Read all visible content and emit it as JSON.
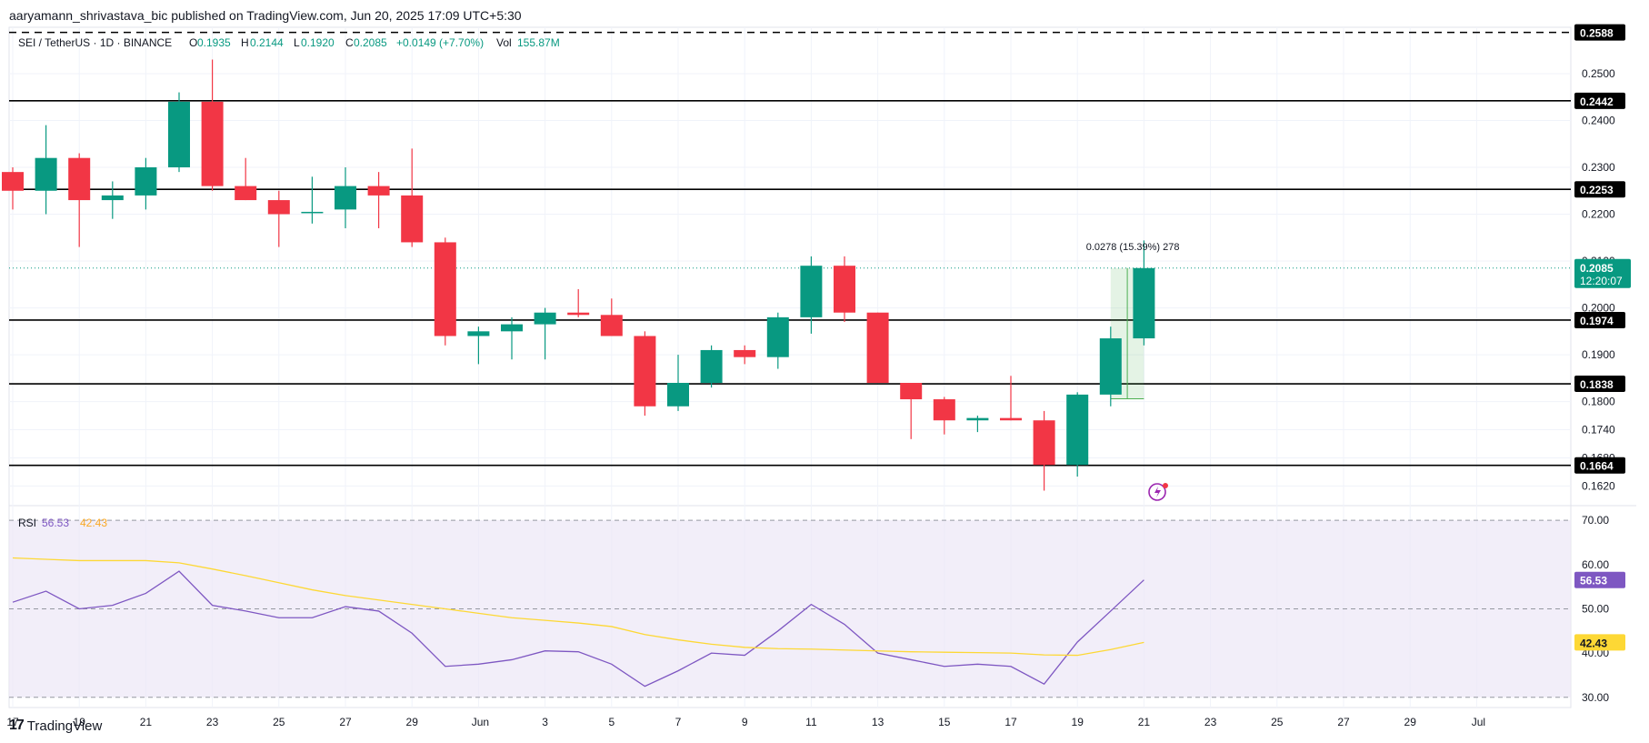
{
  "header": {
    "publisher_line": "aaryamann_shrivastava_bic published on TradingView.com, Jun 20, 2025 17:09 UTC+5:30"
  },
  "legend": {
    "symbol": "SEI / TetherUS · 1D · BINANCE",
    "o_label": "O",
    "o_value": "0.1935",
    "h_label": "H",
    "h_value": "0.2144",
    "l_label": "L",
    "l_value": "0.1920",
    "c_label": "C",
    "c_value": "0.2085",
    "change": "+0.0149 (+7.70%)",
    "vol_label": "Vol",
    "vol_value": "155.87M"
  },
  "rsi_legend": {
    "label": "RSI",
    "value1": "56.53",
    "value2": "42.43"
  },
  "footer": {
    "brand": "TradingView"
  },
  "colors": {
    "up": "#089981",
    "down": "#f23645",
    "rsi_line": "#7e57c2",
    "rsi_ma": "#fdd835",
    "rsi_band": "#ede7f6",
    "grid": "#f0f3fa",
    "text": "#131722"
  },
  "chart_data": [
    {
      "type": "candlestick",
      "title": "SEI / TetherUS",
      "price_axis_ticks": [
        "0.2500",
        "0.2400",
        "0.2300",
        "0.2200",
        "0.2100",
        "0.2000",
        "0.1900",
        "0.1800",
        "0.1740",
        "0.1680",
        "0.1620"
      ],
      "x_ticks": [
        "17",
        "19",
        "21",
        "23",
        "25",
        "27",
        "29",
        "Jun",
        "3",
        "5",
        "7",
        "9",
        "11",
        "13",
        "15",
        "17",
        "19",
        "21",
        "23",
        "25",
        "27",
        "29",
        "Jul"
      ],
      "ylim": [
        0.158,
        0.259
      ],
      "candles": [
        {
          "d": "May 17",
          "o": 0.229,
          "h": 0.23,
          "l": 0.221,
          "c": 0.225
        },
        {
          "d": "May 18",
          "o": 0.225,
          "h": 0.239,
          "l": 0.22,
          "c": 0.232
        },
        {
          "d": "May 19",
          "o": 0.232,
          "h": 0.233,
          "l": 0.213,
          "c": 0.223
        },
        {
          "d": "May 20",
          "o": 0.223,
          "h": 0.227,
          "l": 0.219,
          "c": 0.224
        },
        {
          "d": "May 21",
          "o": 0.224,
          "h": 0.232,
          "l": 0.221,
          "c": 0.23
        },
        {
          "d": "May 22",
          "o": 0.23,
          "h": 0.246,
          "l": 0.229,
          "c": 0.244
        },
        {
          "d": "May 23",
          "o": 0.244,
          "h": 0.253,
          "l": 0.225,
          "c": 0.226
        },
        {
          "d": "May 24",
          "o": 0.226,
          "h": 0.232,
          "l": 0.223,
          "c": 0.223
        },
        {
          "d": "May 25",
          "o": 0.223,
          "h": 0.225,
          "l": 0.213,
          "c": 0.22
        },
        {
          "d": "May 26",
          "o": 0.2205,
          "h": 0.228,
          "l": 0.218,
          "c": 0.2205
        },
        {
          "d": "May 27",
          "o": 0.221,
          "h": 0.23,
          "l": 0.217,
          "c": 0.226
        },
        {
          "d": "May 28",
          "o": 0.226,
          "h": 0.229,
          "l": 0.217,
          "c": 0.224
        },
        {
          "d": "May 29",
          "o": 0.224,
          "h": 0.234,
          "l": 0.213,
          "c": 0.214
        },
        {
          "d": "May 30",
          "o": 0.214,
          "h": 0.215,
          "l": 0.192,
          "c": 0.194
        },
        {
          "d": "May 31",
          "o": 0.194,
          "h": 0.196,
          "l": 0.188,
          "c": 0.195
        },
        {
          "d": "Jun 1",
          "o": 0.195,
          "h": 0.198,
          "l": 0.189,
          "c": 0.1965
        },
        {
          "d": "Jun 2",
          "o": 0.1965,
          "h": 0.2,
          "l": 0.189,
          "c": 0.199
        },
        {
          "d": "Jun 3",
          "o": 0.199,
          "h": 0.204,
          "l": 0.198,
          "c": 0.1985
        },
        {
          "d": "Jun 4",
          "o": 0.1985,
          "h": 0.202,
          "l": 0.194,
          "c": 0.194
        },
        {
          "d": "Jun 5",
          "o": 0.194,
          "h": 0.195,
          "l": 0.177,
          "c": 0.179
        },
        {
          "d": "Jun 6",
          "o": 0.179,
          "h": 0.19,
          "l": 0.178,
          "c": 0.184
        },
        {
          "d": "Jun 7",
          "o": 0.184,
          "h": 0.192,
          "l": 0.183,
          "c": 0.191
        },
        {
          "d": "Jun 8",
          "o": 0.191,
          "h": 0.192,
          "l": 0.188,
          "c": 0.1895
        },
        {
          "d": "Jun 9",
          "o": 0.1895,
          "h": 0.199,
          "l": 0.187,
          "c": 0.198
        },
        {
          "d": "Jun 10",
          "o": 0.198,
          "h": 0.211,
          "l": 0.1945,
          "c": 0.209
        },
        {
          "d": "Jun 11",
          "o": 0.209,
          "h": 0.211,
          "l": 0.197,
          "c": 0.199
        },
        {
          "d": "Jun 12",
          "o": 0.199,
          "h": 0.199,
          "l": 0.184,
          "c": 0.184
        },
        {
          "d": "Jun 13",
          "o": 0.184,
          "h": 0.184,
          "l": 0.172,
          "c": 0.1805
        },
        {
          "d": "Jun 14",
          "o": 0.1805,
          "h": 0.181,
          "l": 0.173,
          "c": 0.176
        },
        {
          "d": "Jun 15",
          "o": 0.176,
          "h": 0.177,
          "l": 0.1735,
          "c": 0.1765
        },
        {
          "d": "Jun 16",
          "o": 0.1765,
          "h": 0.1855,
          "l": 0.176,
          "c": 0.176
        },
        {
          "d": "Jun 17",
          "o": 0.176,
          "h": 0.178,
          "l": 0.161,
          "c": 0.1665
        },
        {
          "d": "Jun 18",
          "o": 0.1665,
          "h": 0.182,
          "l": 0.164,
          "c": 0.1815
        },
        {
          "d": "Jun 19",
          "o": 0.1815,
          "h": 0.196,
          "l": 0.179,
          "c": 0.1935
        },
        {
          "d": "Jun 20",
          "o": 0.1935,
          "h": 0.2144,
          "l": 0.192,
          "c": 0.2085
        }
      ],
      "horizontal_levels": [
        {
          "value": "0.2588",
          "style": "dashed"
        },
        {
          "value": "0.2442",
          "style": "solid"
        },
        {
          "value": "0.2253",
          "style": "solid"
        },
        {
          "value": "0.1974",
          "style": "solid"
        },
        {
          "value": "0.1838",
          "style": "solid"
        },
        {
          "value": "0.1664",
          "style": "solid"
        }
      ],
      "current_price": {
        "value": "0.2085",
        "countdown": "12:20:07"
      },
      "measure_annotation": {
        "text": "0.0278 (15.39%) 278",
        "from": 0.1806,
        "to": 0.2085,
        "from_date": "Jun 19",
        "to_date": "Jun 20"
      }
    },
    {
      "type": "line",
      "title": "RSI",
      "ylim": [
        28,
        72
      ],
      "y_ticks": [
        "70.00",
        "60.00",
        "50.00",
        "40.00",
        "30.00"
      ],
      "band": [
        30,
        70
      ],
      "midline": 50,
      "series": [
        {
          "name": "RSI",
          "values": [
            51.5,
            54,
            50,
            50.8,
            53.5,
            58.5,
            50.8,
            49.5,
            48,
            48,
            50.5,
            49.5,
            44.5,
            37,
            37.5,
            38.5,
            40.5,
            40.3,
            37.5,
            32.5,
            36,
            40,
            39.5,
            45,
            51,
            46.5,
            40,
            38.5,
            37,
            37.5,
            37,
            33,
            42.5,
            49.5,
            56.53
          ]
        },
        {
          "name": "MA",
          "values": [
            61.5,
            61.2,
            60.9,
            60.9,
            60.9,
            60.4,
            59,
            57.5,
            55.9,
            54.3,
            53,
            52,
            51,
            50,
            49,
            48,
            47.4,
            46.8,
            46,
            44.2,
            43,
            42,
            41.3,
            41,
            40.9,
            40.7,
            40.5,
            40.3,
            40.2,
            40.1,
            40,
            39.6,
            39.5,
            40.8,
            42.43
          ]
        }
      ]
    }
  ]
}
